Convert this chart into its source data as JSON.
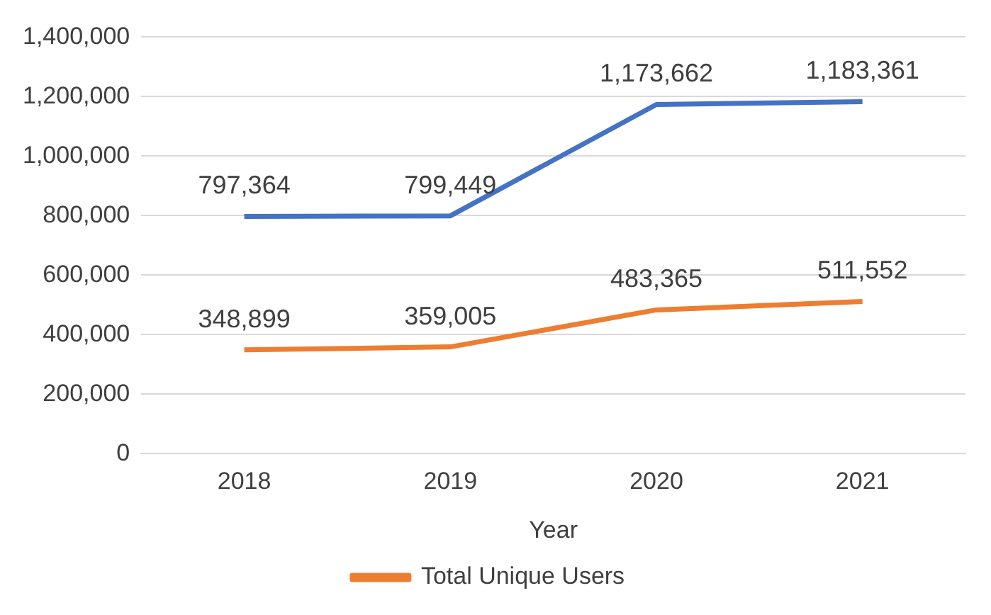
{
  "chart_data": {
    "type": "line",
    "xlabel": "Year",
    "categories": [
      "2018",
      "2019",
      "2020",
      "2021"
    ],
    "series": [
      {
        "color": "#4472c4",
        "values": [
          797364,
          799449,
          1173662,
          1183361
        ],
        "value_labels": [
          "797,364",
          "799,449",
          "1,173,662",
          "1,183,361"
        ]
      },
      {
        "name": "Total Unique Users",
        "color": "#ed7d31",
        "values": [
          348899,
          359005,
          483365,
          511552
        ],
        "value_labels": [
          "348,899",
          "359,005",
          "483,365",
          "511,552"
        ]
      }
    ],
    "ylim": [
      0,
      1400000
    ],
    "yticks": [
      0,
      {
        "value": 200000,
        "label": "200,000"
      },
      {
        "value": 400000,
        "label": "400,000"
      },
      {
        "value": 600000,
        "label": "600,000"
      },
      {
        "value": 800000,
        "label": "800,000"
      },
      {
        "value": 1000000,
        "label": "1,000,000"
      },
      {
        "value": 1200000,
        "label": "1,200,000"
      },
      {
        "value": 1400000,
        "label": "1,400,000"
      }
    ],
    "grid": "y",
    "legend": "bottom",
    "marker": "none"
  }
}
